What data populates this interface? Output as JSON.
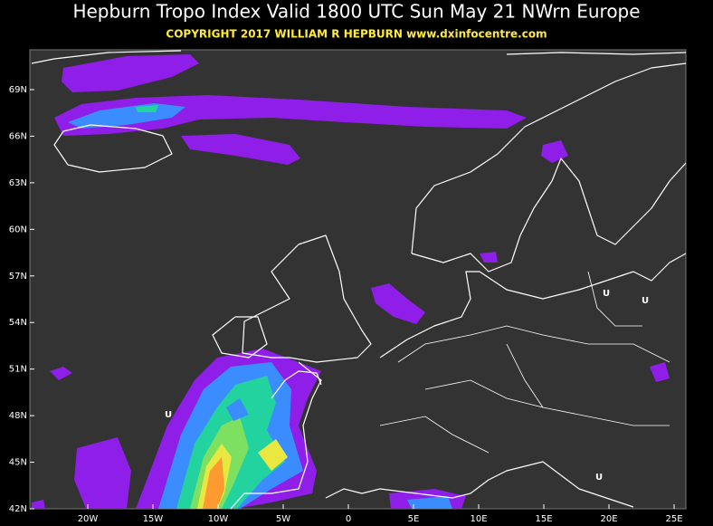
{
  "header": {
    "title": "Hepburn Tropo Index Valid 1800 UTC Sun May 21 NWrn Europe",
    "subtitle": "COPYRIGHT 2017   WILLIAM R HEPBURN   www.dxinfocentre.com"
  },
  "map": {
    "lat_labels": [
      "69N",
      "66N",
      "63N",
      "60N",
      "57N",
      "54N",
      "51N",
      "48N",
      "45N",
      "42N"
    ],
    "lon_labels": [
      "20W",
      "15W",
      "10W",
      "5W",
      "0",
      "5E",
      "10E",
      "15E",
      "20E",
      "25E"
    ],
    "markers": [
      "U",
      "U",
      "U",
      "U"
    ]
  }
}
